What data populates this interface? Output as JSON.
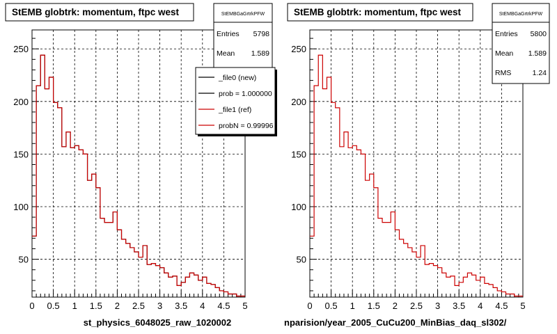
{
  "chart_data": [
    {
      "type": "histogram",
      "title": "StEMB globtrk: momentum, ftpc west",
      "xlabel": "st_physics_6048025_raw_1020002",
      "xlim": [
        0,
        5
      ],
      "ylim": [
        14,
        268
      ],
      "x_ticks": [
        "0",
        "0.5",
        "1",
        "1.5",
        "2",
        "2.5",
        "3",
        "3.5",
        "4",
        "4.5",
        "5"
      ],
      "y_ticks": [
        "50",
        "100",
        "150",
        "200",
        "250"
      ],
      "grid": true,
      "bin_width": 0.1,
      "series": [
        {
          "name": "_file0 (new)",
          "color": "#000000",
          "values": [
            72,
            215,
            244,
            212,
            223,
            199,
            194,
            157,
            171,
            156,
            158,
            154,
            150,
            125,
            131,
            118,
            89,
            85,
            85,
            95,
            78,
            69,
            65,
            61,
            57,
            52,
            63,
            45,
            46,
            44,
            42,
            37,
            33,
            34,
            25,
            28,
            33,
            37,
            35,
            30,
            33,
            27,
            26,
            23,
            20,
            19,
            17,
            17,
            15,
            15
          ]
        },
        {
          "name": "_file1 (ref)",
          "color": "#cc0000",
          "values": [
            72,
            215,
            244,
            212,
            223,
            199,
            194,
            157,
            171,
            156,
            158,
            154,
            150,
            125,
            131,
            118,
            89,
            85,
            85,
            95,
            78,
            69,
            65,
            61,
            57,
            52,
            63,
            45,
            46,
            44,
            42,
            37,
            33,
            34,
            25,
            28,
            33,
            37,
            35,
            30,
            33,
            27,
            26,
            23,
            20,
            19,
            17,
            17,
            15,
            15
          ]
        }
      ],
      "stats": {
        "name": "StEMBGaGrtrkPFW",
        "rows": [
          {
            "label": "Entries",
            "value": "5798"
          },
          {
            "label": "Mean",
            "value": "1.589"
          }
        ]
      },
      "legend": {
        "placement": "top-right",
        "entries": [
          {
            "label": "_file0 (new)",
            "color": "#000000"
          },
          {
            "label": "prob = 1.000000",
            "color": "#000000"
          },
          {
            "label": "_file1 (ref)",
            "color": "#cc0000"
          },
          {
            "label": "probN = 0.99996",
            "color": "#cc0000"
          }
        ]
      }
    },
    {
      "type": "histogram",
      "title": "StEMB globtrk: momentum, ftpc west",
      "xlabel": "nparision/year_2005_CuCu200_MinBias_daq_sl302/",
      "xlim": [
        0,
        5
      ],
      "ylim": [
        14,
        268
      ],
      "x_ticks": [
        "0",
        "0.5",
        "1",
        "1.5",
        "2",
        "2.5",
        "3",
        "3.5",
        "4",
        "4.5",
        "5"
      ],
      "y_ticks": [
        "50",
        "100",
        "150",
        "200",
        "250"
      ],
      "grid": true,
      "bin_width": 0.1,
      "series": [
        {
          "name": "",
          "color": "#cc0000",
          "values": [
            72,
            215,
            244,
            212,
            223,
            199,
            194,
            157,
            171,
            156,
            158,
            154,
            150,
            125,
            131,
            118,
            89,
            85,
            85,
            95,
            78,
            69,
            65,
            61,
            57,
            52,
            63,
            45,
            46,
            44,
            42,
            37,
            33,
            34,
            25,
            28,
            33,
            37,
            35,
            30,
            33,
            27,
            26,
            23,
            20,
            19,
            17,
            17,
            15,
            15
          ]
        }
      ],
      "stats": {
        "name": "StEMBGaGrtrkPFW",
        "rows": [
          {
            "label": "Entries",
            "value": "5800"
          },
          {
            "label": "Mean",
            "value": "1.589"
          },
          {
            "label": "RMS",
            "value": "1.24"
          }
        ]
      }
    }
  ]
}
